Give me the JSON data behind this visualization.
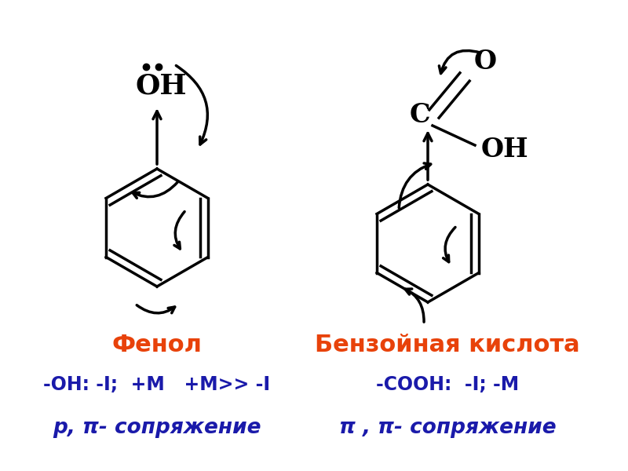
{
  "bg_color": "#ffffff",
  "title_phenol": "Фенол",
  "title_benzoic": "Бензойная кислота",
  "subtitle_phenol": "-OH: -I;  +M   +M>> -I",
  "subtitle_benzoic": "-COOH:  -I; -M",
  "conjugation_phenol": "p, π- сопряжение",
  "conjugation_benzoic": "π , π- сопряжение",
  "title_color": "#e8420a",
  "text_color": "#1a1aaa",
  "molecule_color": "#000000",
  "title_fontsize": 22,
  "subtitle_fontsize": 17,
  "conj_fontsize": 19
}
